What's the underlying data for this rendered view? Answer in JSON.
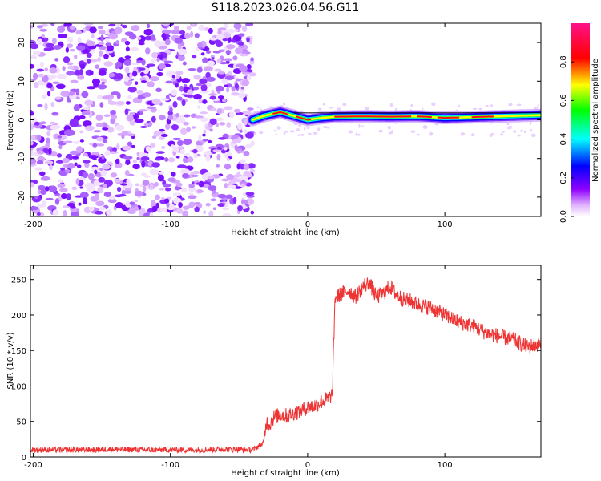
{
  "title": "S118.2023.026.04.56.G11",
  "chart_data": [
    {
      "type": "heatmap",
      "xlabel": "Height of straight line (km)",
      "ylabel": "Frequency (Hz)",
      "xlim": [
        -202,
        170
      ],
      "ylim": [
        -25,
        25
      ],
      "xticks": [
        -200,
        -100,
        0,
        100
      ],
      "yticks": [
        -20,
        -10,
        0,
        10,
        20
      ],
      "colorbar": {
        "label": "Normalized spectral amplitude",
        "range": [
          0,
          1
        ],
        "ticks": [
          0.0,
          0.2,
          0.4,
          0.6,
          0.8
        ],
        "colormap": [
          "#ffffff",
          "#b0f",
          "#0000ff",
          "#00ffff",
          "#00ff00",
          "#ffff00",
          "#ff0000",
          "#ff0088"
        ]
      },
      "noise_region": {
        "x": [
          -202,
          -40
        ],
        "y": [
          -25,
          25
        ],
        "amplitude": [
          0.05,
          0.3
        ]
      },
      "signal_ridge": [
        {
          "x": -40,
          "y": 0.0
        },
        {
          "x": -32,
          "y": 1.0
        },
        {
          "x": -20,
          "y": 2.0
        },
        {
          "x": -10,
          "y": 1.0
        },
        {
          "x": 0,
          "y": 0.0
        },
        {
          "x": 10,
          "y": 0.5
        },
        {
          "x": 20,
          "y": 0.8
        },
        {
          "x": 40,
          "y": 0.9
        },
        {
          "x": 60,
          "y": 0.8
        },
        {
          "x": 80,
          "y": 0.9
        },
        {
          "x": 100,
          "y": 0.5
        },
        {
          "x": 130,
          "y": 0.8
        },
        {
          "x": 170,
          "y": 1.2
        }
      ]
    },
    {
      "type": "line",
      "xlabel": "Height of straight line (km)",
      "ylabel": "SNR (10 * v/v)",
      "xlim": [
        -202,
        170
      ],
      "ylim": [
        0,
        270
      ],
      "xticks": [
        -200,
        -100,
        0,
        100
      ],
      "yticks": [
        0,
        50,
        100,
        150,
        200,
        250
      ],
      "color": "#ee3333",
      "series": [
        {
          "x": [
            -202,
            -180,
            -160,
            -140,
            -120,
            -100,
            -80,
            -60,
            -40,
            -32,
            -30,
            -28,
            -25,
            -20,
            -15,
            -10,
            -5,
            0,
            5,
            10,
            15,
            18,
            20,
            25,
            30,
            35,
            40,
            45,
            50,
            55,
            60,
            65,
            70,
            75,
            80,
            90,
            100,
            110,
            120,
            130,
            140,
            150,
            160,
            170
          ],
          "y": [
            10,
            10,
            10,
            11,
            10,
            10,
            10,
            11,
            10,
            20,
            50,
            45,
            55,
            60,
            58,
            62,
            65,
            70,
            72,
            78,
            82,
            88,
            225,
            230,
            235,
            225,
            240,
            245,
            225,
            230,
            240,
            228,
            222,
            220,
            215,
            210,
            200,
            190,
            185,
            175,
            170,
            165,
            155,
            160
          ]
        }
      ]
    }
  ]
}
